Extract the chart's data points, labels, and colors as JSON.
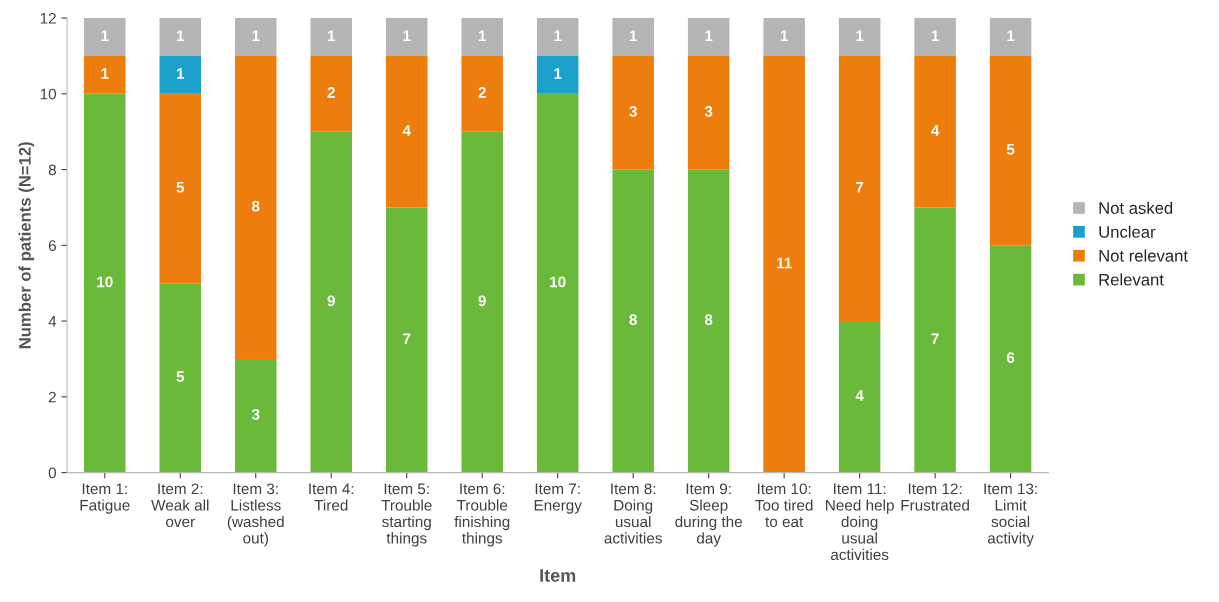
{
  "chart_data": {
    "type": "bar",
    "stacked": true,
    "xlabel": "Item",
    "ylabel": "Number of patients (N=12)",
    "categories": [
      "Item 1:\nFatigue",
      "Item 2:\nWeak all\nover",
      "Item 3:\nListless\n(washed\nout)",
      "Item 4:\nTired",
      "Item 5:\nTrouble\nstarting\nthings",
      "Item 6:\nTrouble\nfinishing\nthings",
      "Item 7:\nEnergy",
      "Item 8:\nDoing\nusual\nactivities",
      "Item 9:\nSleep\nduring the\nday",
      "Item 10:\nToo tired\nto eat",
      "Item 11:\nNeed help\ndoing\nusual\nactivities",
      "Item 12:\nFrustrated",
      "Item 13:\nLimit\nsocial\nactivity"
    ],
    "series": [
      {
        "name": "Relevant",
        "color": "#6ab93a",
        "values": [
          10,
          5,
          3,
          9,
          7,
          9,
          10,
          8,
          8,
          0,
          4,
          7,
          6
        ],
        "value_labels": [
          "10",
          "5",
          "3",
          "9",
          "7",
          "9",
          "10",
          "8",
          "8",
          null,
          "4",
          "7",
          "6"
        ]
      },
      {
        "name": "Not relevant",
        "color": "#ed7d0d",
        "values": [
          1,
          5,
          8,
          2,
          4,
          2,
          0,
          3,
          3,
          11,
          7,
          4,
          5
        ],
        "value_labels": [
          "1",
          "5",
          "8",
          "2",
          "4",
          "2",
          null,
          "3",
          "3",
          "11",
          "7",
          "4",
          "5"
        ]
      },
      {
        "name": "Unclear",
        "color": "#1aa0c9",
        "values": [
          0,
          1,
          0,
          0,
          0,
          0,
          1,
          0,
          0,
          0,
          0,
          0,
          0
        ],
        "value_labels": [
          null,
          "1",
          null,
          null,
          null,
          null,
          "1",
          null,
          null,
          null,
          null,
          null,
          null
        ]
      },
      {
        "name": "Not asked",
        "color": "#b5b5b5",
        "values": [
          1,
          1,
          1,
          1,
          1,
          1,
          1,
          1,
          1,
          1,
          1,
          1,
          1
        ],
        "value_labels": [
          "1",
          "1",
          "1",
          "1",
          "1",
          "1",
          "1",
          "1",
          "1",
          "1",
          "1",
          "1",
          "1"
        ]
      }
    ],
    "ylim": [
      0,
      12
    ],
    "yticks": [
      0,
      2,
      4,
      6,
      8,
      10,
      12
    ],
    "grid": false,
    "legend": "right"
  }
}
